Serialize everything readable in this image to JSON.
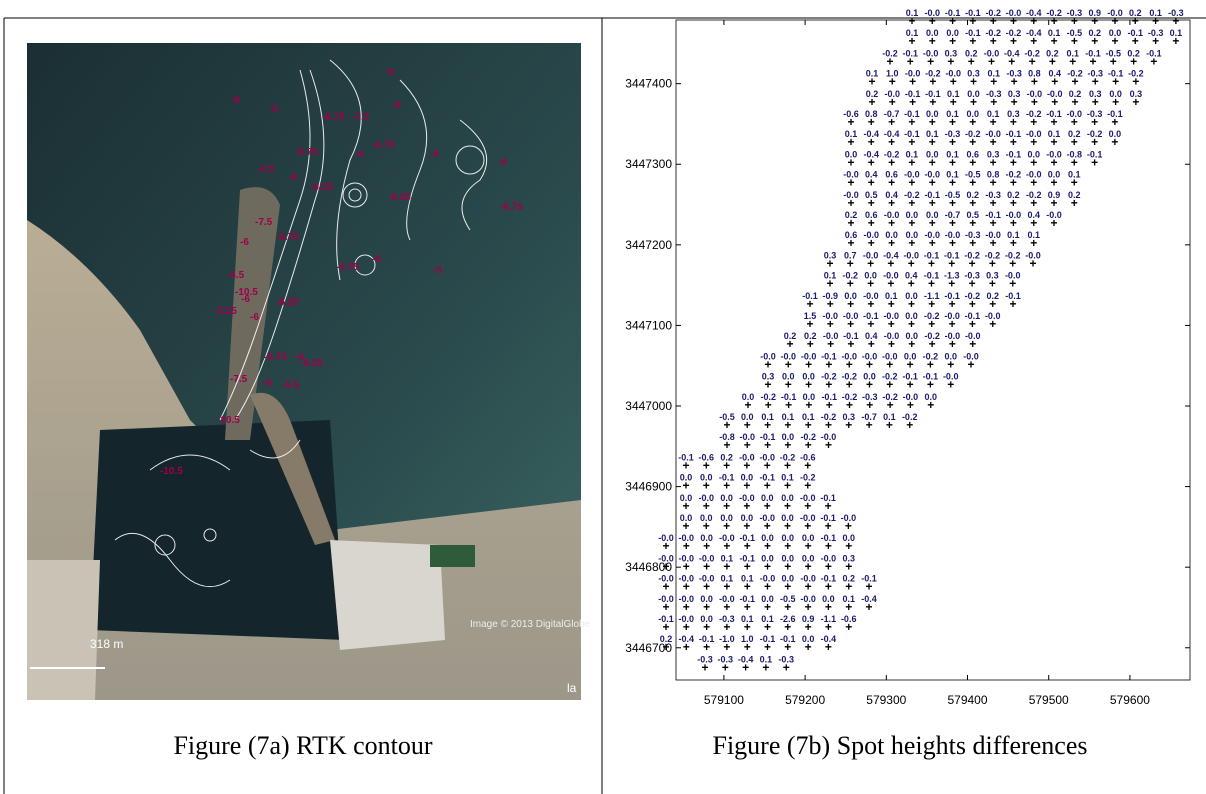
{
  "figure_a": {
    "caption": "Figure (7a) RTK contour",
    "contour_labels": [
      "-5",
      "-6",
      "-5",
      "-6.75",
      "-7.5",
      "-6",
      "-6.75",
      "-6",
      "-6",
      "-6.75",
      "-6",
      "-4.5",
      "-6",
      "-6.25",
      "-6.25",
      "-6.75",
      "-7.5",
      "-6",
      "-6.75",
      "-4.75",
      "-6",
      "-5",
      "-4.5",
      "-10.5",
      "-6",
      "-5.25",
      "-6.25",
      "-6",
      "-5.75",
      "-6",
      "-6.25",
      "-7.5",
      "-6",
      "-5.5",
      "-10.5",
      "-10.5"
    ],
    "scale_label": "318 m",
    "credit": "Image © 2013 DigitalGlobe",
    "corner_text": "la"
  },
  "figure_b": {
    "caption": "Figure (7b) Spot heights differences",
    "xlim": [
      579041,
      579674
    ],
    "ylim": [
      3446660,
      3447479
    ],
    "xticks": [
      579100,
      579200,
      579300,
      579400,
      579500,
      579600
    ],
    "yticks": [
      3446700,
      3446800,
      3446900,
      3447000,
      3447100,
      3447200,
      3447300,
      3447400
    ],
    "rows": [
      [
        "0.1",
        "-0.0",
        "-0.1",
        "-0.1",
        "-0.2",
        "-0.0",
        "-0.4",
        "-0.2",
        "-0.3",
        "0.9",
        "-0.0",
        "0.2",
        "0.1",
        "-0.3"
      ],
      [
        "0.1",
        "0.0",
        "0.0",
        "-0.1",
        "-0.2",
        "-0.2",
        "-0.4",
        "0.1",
        "-0.5",
        "0.2",
        "0.0",
        "-0.1",
        "-0.3",
        "0.1"
      ],
      [
        "-0.2",
        "-0.1",
        "-0.0",
        "0.3",
        "0.2",
        "-0.0",
        "-0.4",
        "-0.2",
        "0.2",
        "0.1",
        "-0.1",
        "-0.5",
        "0.2",
        "-0.1"
      ],
      [
        "0.1",
        "1.0",
        "-0.0",
        "-0.2",
        "-0.0",
        "0.3",
        "0.1",
        "-0.3",
        "0.8",
        "0.4",
        "-0.2",
        "-0.3",
        "-0.1",
        "-0.2"
      ],
      [
        "0.2",
        "-0.0",
        "-0.1",
        "-0.1",
        "0.1",
        "0.0",
        "-0.3",
        "0.3",
        "-0.0",
        "-0.0",
        "0.2",
        "0.3",
        "0.0",
        "0.3"
      ],
      [
        "-0.6",
        "0.8",
        "-0.7",
        "-0.1",
        "0.0",
        "0.1",
        "0.0",
        "0.1",
        "0.3",
        "-0.2",
        "-0.1",
        "-0.0",
        "-0.3",
        "-0.1"
      ],
      [
        "0.1",
        "-0.4",
        "-0.4",
        "-0.1",
        "0.1",
        "-0.3",
        "-0.2",
        "-0.0",
        "-0.1",
        "-0.0",
        "0.1",
        "0.2",
        "-0.2",
        "0.0"
      ],
      [
        "0.0",
        "-0.4",
        "-0.2",
        "0.1",
        "0.0",
        "0.1",
        "0.6",
        "0.3",
        "-0.1",
        "0.0",
        "-0.0",
        "-0.8",
        "-0.1"
      ],
      [
        "-0.0",
        "0.4",
        "0.6",
        "-0.0",
        "-0.0",
        "0.1",
        "-0.5",
        "0.8",
        "-0.2",
        "-0.0",
        "0.0",
        "0.1"
      ],
      [
        "-0.0",
        "0.5",
        "0.4",
        "-0.2",
        "-0.1",
        "-0.5",
        "0.2",
        "-0.3",
        "0.2",
        "-0.2",
        "0.9",
        "0.2"
      ],
      [
        "0.2",
        "0.6",
        "-0.0",
        "0.0",
        "0.0",
        "-0.7",
        "0.5",
        "-0.1",
        "-0.0",
        "0.4",
        "-0.0"
      ],
      [
        "0.6",
        "-0.0",
        "0.0",
        "0.0",
        "-0.0",
        "-0.0",
        "-0.3",
        "-0.0",
        "0.1",
        "0.1"
      ],
      [
        "0.3",
        "0.7",
        "-0.0",
        "-0.4",
        "-0.0",
        "-0.1",
        "-0.1",
        "-0.2",
        "-0.2",
        "-0.2",
        "-0.0"
      ],
      [
        "0.1",
        "-0.2",
        "0.0",
        "-0.0",
        "0.4",
        "-0.1",
        "-1.3",
        "-0.3",
        "0.3",
        "-0.0"
      ],
      [
        "-0.1",
        "-0.9",
        "0.0",
        "-0.0",
        "0.1",
        "0.0",
        "-1.1",
        "-0.1",
        "-0.2",
        "0.2",
        "-0.1"
      ],
      [
        "1.5",
        "-0.0",
        "-0.0",
        "-0.1",
        "-0.0",
        "0.0",
        "-0.2",
        "-0.0",
        "-0.1",
        "-0.0"
      ],
      [
        "0.2",
        "0.2",
        "-0.0",
        "-0.1",
        "0.4",
        "-0.0",
        "0.0",
        "-0.2",
        "-0.0",
        "-0.0"
      ],
      [
        "-0.0",
        "-0.0",
        "-0.0",
        "-0.1",
        "-0.0",
        "-0.0",
        "-0.0",
        "0.0",
        "-0.2",
        "0.0",
        "-0.0"
      ],
      [
        "0.3",
        "0.0",
        "0.0",
        "-0.2",
        "-0.2",
        "0.0",
        "-0.2",
        "-0.1",
        "-0.1",
        "-0.0"
      ],
      [
        "0.0",
        "-0.2",
        "-0.1",
        "0.0",
        "-0.1",
        "-0.2",
        "-0.3",
        "-0.2",
        "-0.0",
        "0.0"
      ],
      [
        "-0.5",
        "0.0",
        "0.1",
        "0.1",
        "0.1",
        "-0.2",
        "0.3",
        "-0.7",
        "0.1",
        "-0.2"
      ],
      [
        "-0.8",
        "-0.0",
        "-0.1",
        "0.0",
        "-0.2",
        "-0.0"
      ],
      [
        "-0.1",
        "-0.6",
        "0.2",
        "-0.0",
        "-0.0",
        "-0.2",
        "-0.6"
      ],
      [
        "0.0",
        "0.0",
        "-0.1",
        "0.0",
        "-0.1",
        "0.1",
        "-0.2"
      ],
      [
        "0.0",
        "-0.0",
        "0.0",
        "-0.0",
        "0.0",
        "0.0",
        "-0.0",
        "-0.1"
      ],
      [
        "0.0",
        "0.0",
        "0.0",
        "0.0",
        "-0.0",
        "0.0",
        "-0.0",
        "-0.1",
        "-0.0"
      ],
      [
        "-0.0",
        "-0.0",
        "0.0",
        "-0.0",
        "-0.1",
        "0.0",
        "0.0",
        "0.0",
        "-0.1",
        "0.0"
      ],
      [
        "-0.0",
        "-0.0",
        "-0.0",
        "0.1",
        "-0.1",
        "0.0",
        "0.0",
        "0.0",
        "-0.0",
        "0.3"
      ],
      [
        "-0.0",
        "-0.0",
        "-0.0",
        "0.1",
        "0.1",
        "-0.0",
        "0.0",
        "-0.0",
        "-0.1",
        "0.2",
        "-0.1"
      ],
      [
        "-0.0",
        "-0.0",
        "0.0",
        "-0.0",
        "-0.1",
        "0.0",
        "-0.5",
        "-0.0",
        "0.0",
        "0.1",
        "-0.4"
      ],
      [
        "-0.1",
        "-0.0",
        "0.0",
        "-0.3",
        "0.1",
        "0.1",
        "-2.6",
        "0.9",
        "-1.1",
        "-0.6"
      ],
      [
        "0.2",
        "-0.4",
        "-0.1",
        "-1.0",
        "1.0",
        "-0.1",
        "-0.1",
        "0.0",
        "-0.4"
      ],
      [
        "-0.3",
        "-0.3",
        "-0.4",
        "0.1",
        "-0.3"
      ]
    ]
  }
}
